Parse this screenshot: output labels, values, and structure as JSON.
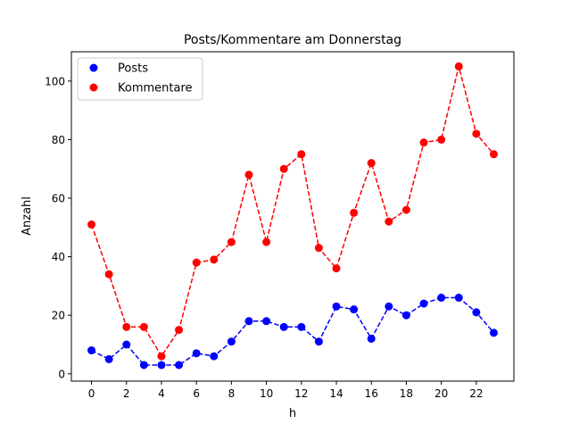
{
  "chart_data": {
    "type": "line",
    "title": "Posts/Kommentare am Donnerstag",
    "xlabel": "h",
    "ylabel": "Anzahl",
    "xlim": [
      -1.15,
      24.15
    ],
    "ylim": [
      -2.5,
      110
    ],
    "grid": false,
    "legend_position": "top-left",
    "x": [
      0,
      1,
      2,
      3,
      4,
      5,
      6,
      7,
      8,
      9,
      10,
      11,
      12,
      13,
      14,
      15,
      16,
      17,
      18,
      19,
      20,
      21,
      22,
      23
    ],
    "x_ticks": [
      0,
      2,
      4,
      6,
      8,
      10,
      12,
      14,
      16,
      18,
      20,
      22
    ],
    "y_ticks": [
      0,
      20,
      40,
      60,
      80,
      100
    ],
    "series": [
      {
        "name": "Posts",
        "color": "#0000ff",
        "line_style": "dashed",
        "marker": "circle",
        "values": [
          8,
          5,
          10,
          3,
          3,
          3,
          7,
          6,
          11,
          18,
          18,
          16,
          16,
          11,
          23,
          22,
          12,
          23,
          20,
          24,
          26,
          26,
          21,
          14
        ]
      },
      {
        "name": "Kommentare",
        "color": "#ff0000",
        "line_style": "dashed",
        "marker": "circle",
        "values": [
          51,
          34,
          16,
          16,
          6,
          15,
          38,
          39,
          45,
          68,
          45,
          70,
          75,
          43,
          36,
          55,
          72,
          52,
          56,
          79,
          80,
          105,
          82,
          75
        ]
      }
    ]
  }
}
